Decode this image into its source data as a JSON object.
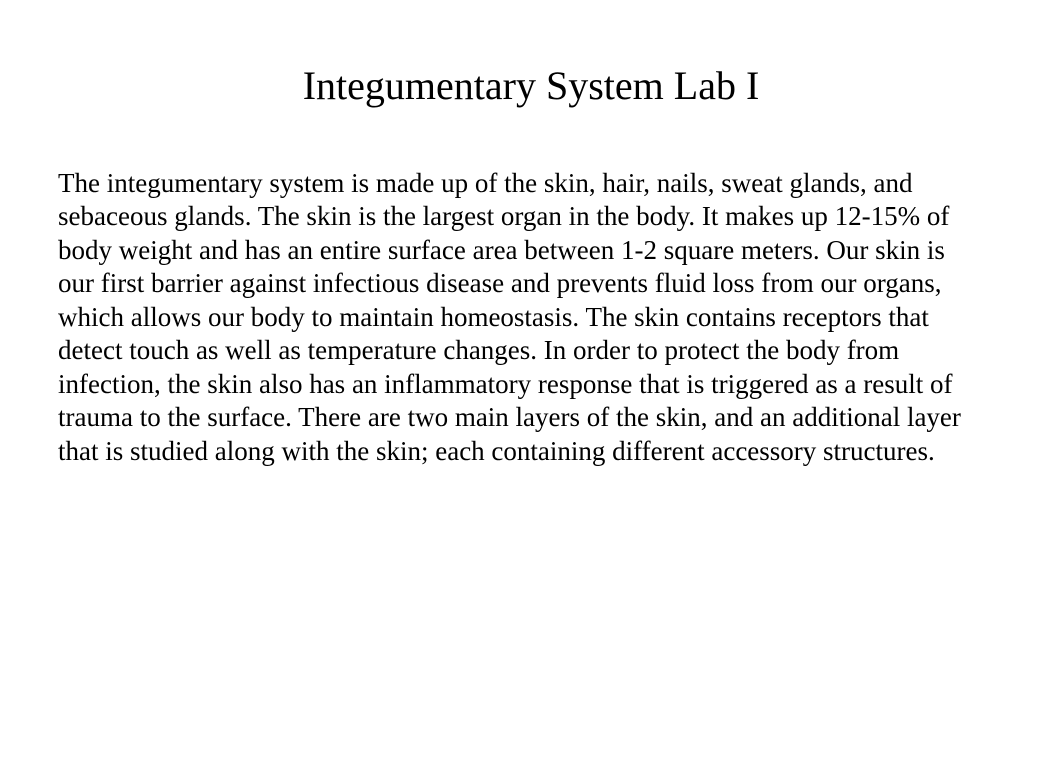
{
  "slide": {
    "title": "Integumentary System Lab I",
    "body": "The integumentary system is made up of the skin, hair, nails, sweat glands, and sebaceous glands. The skin is the largest organ in the body. It makes up 12-15% of body weight and has an entire surface area between 1-2 square meters. Our skin is our first barrier against infectious disease and prevents fluid loss from our organs, which allows our body to maintain homeostasis. The skin contains receptors that detect touch as well as temperature changes. In order to protect the body from infection, the skin also has an inflammatory response that is triggered as a result of trauma to the surface. There are two main layers of the skin, and an additional layer that is studied along with the skin; each containing different accessory structures."
  },
  "styling": {
    "background_color": "#ffffff",
    "text_color": "#000000",
    "title_fontsize": 40,
    "body_fontsize": 27,
    "font_family": "Times New Roman"
  }
}
